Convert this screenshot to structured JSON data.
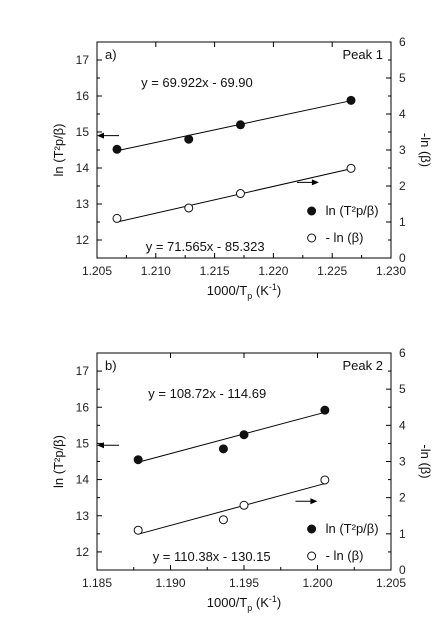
{
  "chart_data": [
    {
      "type": "scatter",
      "panel_label": "a)",
      "title": "Peak 1",
      "xlabel": "1000/T",
      "xlabel_sub": "p",
      "xlabel_unit": " (K",
      "xlabel_sup": "-1",
      "xlabel_close": ")",
      "ylabel_left": "ln (T²p/β)",
      "ylabel_right": "-ln (β)",
      "xlim": [
        1.205,
        1.23
      ],
      "xticks": [
        "1.205",
        "1.210",
        "1.215",
        "1.220",
        "1.225",
        "1.230"
      ],
      "ylim_left": [
        11.5,
        17.5
      ],
      "yticks_left": [
        "12",
        "13",
        "14",
        "15",
        "16",
        "17"
      ],
      "ylim_right": [
        0,
        6
      ],
      "yticks_right": [
        "0",
        "1",
        "2",
        "3",
        "4",
        "5",
        "6"
      ],
      "series": [
        {
          "name": "ln (T²p/β)",
          "axis": "left",
          "marker": "filled",
          "x": [
            1.2067,
            1.2128,
            1.2172,
            1.2266
          ],
          "y": [
            14.52,
            14.8,
            15.2,
            15.88
          ]
        },
        {
          "name": "- ln (β)",
          "axis": "right",
          "marker": "open",
          "x": [
            1.2067,
            1.2128,
            1.2172,
            1.2266
          ],
          "y": [
            1.1,
            1.39,
            1.79,
            2.49
          ]
        }
      ],
      "fit_lines": [
        {
          "axis": "left",
          "x": [
            1.2067,
            1.2266
          ],
          "y": [
            14.48,
            15.87
          ]
        },
        {
          "axis": "right",
          "x": [
            1.2067,
            1.2266
          ],
          "y": [
            1.0,
            2.48
          ]
        }
      ],
      "annotations": {
        "eq_top": "y = 69.922x - 69.90",
        "eq_bottom": "y = 71.565x - 85.323"
      },
      "arrows": {
        "left_arrow": "points to left axis",
        "right_arrow": "points to right axis"
      },
      "legend_position": "bottom-right"
    },
    {
      "type": "scatter",
      "panel_label": "b)",
      "title": "Peak 2",
      "xlabel": "1000/T",
      "xlabel_sub": "p",
      "xlabel_unit": " (K",
      "xlabel_sup": "-1",
      "xlabel_close": ")",
      "ylabel_left": "ln (T²p/β)",
      "ylabel_right": "-ln (β)",
      "xlim": [
        1.185,
        1.205
      ],
      "xticks": [
        "1.185",
        "1.190",
        "1.195",
        "1.200",
        "1.205"
      ],
      "ylim_left": [
        11.5,
        17.5
      ],
      "yticks_left": [
        "12",
        "13",
        "14",
        "15",
        "16",
        "17"
      ],
      "ylim_right": [
        0,
        6
      ],
      "yticks_right": [
        "0",
        "1",
        "2",
        "3",
        "4",
        "5",
        "6"
      ],
      "series": [
        {
          "name": "ln (T²p/β)",
          "axis": "left",
          "marker": "filled",
          "x": [
            1.1878,
            1.1936,
            1.195,
            1.2005
          ],
          "y": [
            14.55,
            14.85,
            15.24,
            15.92
          ]
        },
        {
          "name": "- ln (β)",
          "axis": "right",
          "marker": "open",
          "x": [
            1.1878,
            1.1936,
            1.195,
            1.2005
          ],
          "y": [
            1.1,
            1.39,
            1.79,
            2.49
          ]
        }
      ],
      "fit_lines": [
        {
          "axis": "left",
          "x": [
            1.1878,
            1.2005
          ],
          "y": [
            14.48,
            15.86
          ]
        },
        {
          "axis": "right",
          "x": [
            1.1878,
            1.2005
          ],
          "y": [
            0.99,
            2.39
          ]
        }
      ],
      "annotations": {
        "eq_top": "y = 108.72x - 114.69",
        "eq_bottom": "y = 110.38x - 130.15"
      },
      "arrows": {
        "left_arrow": "points to left axis",
        "right_arrow": "points to right axis"
      },
      "legend_position": "bottom-right"
    }
  ]
}
